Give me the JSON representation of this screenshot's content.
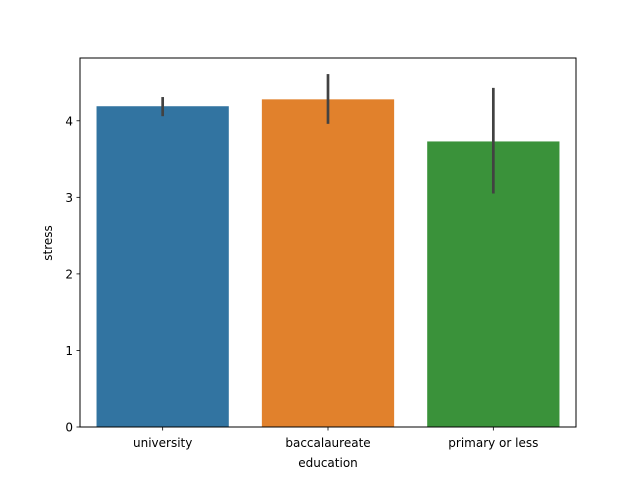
{
  "chart_data": {
    "type": "bar",
    "title": "",
    "xlabel": "education",
    "ylabel": "stress",
    "categories": [
      "university",
      "baccalaureate",
      "primary or less"
    ],
    "values": [
      4.19,
      4.28,
      3.73
    ],
    "error_bars": [
      [
        4.06,
        4.31
      ],
      [
        3.96,
        4.61
      ],
      [
        3.05,
        4.43
      ]
    ],
    "ylim": [
      0,
      4.82
    ],
    "yticks": [
      0,
      1,
      2,
      3,
      4
    ],
    "ytick_labels": [
      "0",
      "1",
      "2",
      "3",
      "4"
    ],
    "colors": [
      "#3274a1",
      "#e1812c",
      "#3a923a"
    ],
    "error_color": "#424242",
    "grid": false,
    "legend": "none"
  }
}
